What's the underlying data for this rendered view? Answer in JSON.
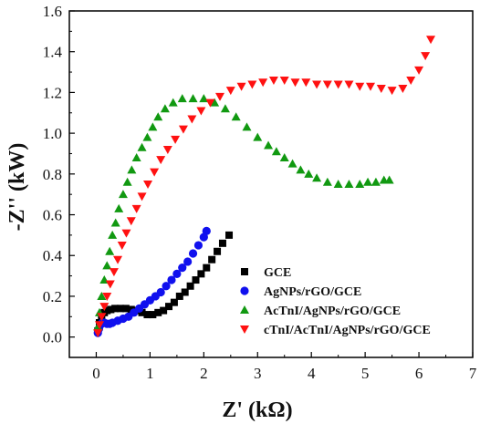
{
  "chart_data": {
    "type": "scatter",
    "title": "",
    "xlabel": "Z' (kΩ)",
    "ylabel": "-Z'' (kW)",
    "xlim": [
      -0.5,
      7
    ],
    "ylim": [
      -0.1,
      1.6
    ],
    "xticks": [
      0,
      1,
      2,
      3,
      4,
      5,
      6,
      7
    ],
    "yticks": [
      0.0,
      0.2,
      0.4,
      0.6,
      0.8,
      1.0,
      1.2,
      1.4,
      1.6
    ],
    "xtick_labels": [
      "0",
      "1",
      "2",
      "3",
      "4",
      "5",
      "6",
      "7"
    ],
    "ytick_labels": [
      "0.0",
      "0.2",
      "0.4",
      "0.6",
      "0.8",
      "1.0",
      "1.2",
      "1.4",
      "1.6"
    ],
    "grid": false,
    "legend_position": "bottom-right",
    "series": [
      {
        "name": "GCE",
        "marker": "square",
        "color": "#000000",
        "x": [
          0.03,
          0.06,
          0.1,
          0.15,
          0.2,
          0.27,
          0.35,
          0.45,
          0.55,
          0.65,
          0.75,
          0.85,
          0.95,
          1.05,
          1.15,
          1.25,
          1.35,
          1.45,
          1.55,
          1.65,
          1.75,
          1.85,
          1.95,
          2.05,
          2.15,
          2.25,
          2.35,
          2.47
        ],
        "y": [
          0.03,
          0.07,
          0.1,
          0.12,
          0.13,
          0.135,
          0.14,
          0.14,
          0.14,
          0.135,
          0.13,
          0.12,
          0.11,
          0.11,
          0.12,
          0.13,
          0.15,
          0.17,
          0.2,
          0.22,
          0.25,
          0.28,
          0.31,
          0.34,
          0.38,
          0.42,
          0.46,
          0.5
        ]
      },
      {
        "name": "AgNPs/rGO/GCE",
        "marker": "circle",
        "color": "#1010ee",
        "x": [
          0.03,
          0.05,
          0.08,
          0.11,
          0.15,
          0.2,
          0.25,
          0.3,
          0.4,
          0.5,
          0.6,
          0.7,
          0.8,
          0.9,
          1.0,
          1.1,
          1.2,
          1.3,
          1.4,
          1.5,
          1.6,
          1.7,
          1.8,
          1.9,
          2.0,
          2.05
        ],
        "y": [
          0.02,
          0.04,
          0.06,
          0.07,
          0.07,
          0.065,
          0.065,
          0.07,
          0.08,
          0.09,
          0.1,
          0.12,
          0.14,
          0.16,
          0.18,
          0.2,
          0.22,
          0.25,
          0.28,
          0.31,
          0.34,
          0.37,
          0.41,
          0.45,
          0.49,
          0.52
        ]
      },
      {
        "name": "AcTnI/AgNPs/rGO/GCE",
        "marker": "triangle-up",
        "color": "#119911",
        "x": [
          0.03,
          0.06,
          0.1,
          0.15,
          0.2,
          0.25,
          0.3,
          0.36,
          0.42,
          0.5,
          0.58,
          0.66,
          0.75,
          0.85,
          0.95,
          1.05,
          1.15,
          1.28,
          1.43,
          1.6,
          1.8,
          2.0,
          2.2,
          2.4,
          2.6,
          2.8,
          3.0,
          3.2,
          3.35,
          3.5,
          3.65,
          3.8,
          3.95,
          4.1,
          4.3,
          4.5,
          4.7,
          4.9,
          5.05,
          5.2,
          5.35,
          5.45
        ],
        "y": [
          0.05,
          0.12,
          0.2,
          0.28,
          0.35,
          0.42,
          0.5,
          0.56,
          0.63,
          0.7,
          0.76,
          0.82,
          0.88,
          0.93,
          0.98,
          1.03,
          1.08,
          1.12,
          1.15,
          1.17,
          1.17,
          1.17,
          1.15,
          1.12,
          1.08,
          1.03,
          0.98,
          0.94,
          0.91,
          0.88,
          0.85,
          0.82,
          0.8,
          0.78,
          0.76,
          0.75,
          0.75,
          0.75,
          0.76,
          0.76,
          0.77,
          0.77
        ]
      },
      {
        "name": "cTnI/AcTnI/AgNPs/rGO/GCE",
        "marker": "triangle-down",
        "color": "#ff1111",
        "x": [
          0.03,
          0.06,
          0.1,
          0.15,
          0.2,
          0.26,
          0.33,
          0.4,
          0.48,
          0.56,
          0.65,
          0.75,
          0.85,
          0.96,
          1.08,
          1.2,
          1.33,
          1.47,
          1.62,
          1.78,
          1.95,
          2.12,
          2.3,
          2.5,
          2.7,
          2.9,
          3.1,
          3.3,
          3.5,
          3.7,
          3.9,
          4.1,
          4.3,
          4.5,
          4.7,
          4.9,
          5.1,
          5.3,
          5.5,
          5.7,
          5.85,
          6.0,
          6.12,
          6.22
        ],
        "y": [
          0.02,
          0.06,
          0.1,
          0.15,
          0.2,
          0.26,
          0.32,
          0.38,
          0.45,
          0.51,
          0.57,
          0.63,
          0.69,
          0.75,
          0.81,
          0.87,
          0.92,
          0.97,
          1.02,
          1.07,
          1.11,
          1.15,
          1.18,
          1.21,
          1.23,
          1.24,
          1.25,
          1.26,
          1.26,
          1.25,
          1.25,
          1.24,
          1.24,
          1.24,
          1.24,
          1.23,
          1.23,
          1.22,
          1.21,
          1.22,
          1.26,
          1.31,
          1.38,
          1.46
        ]
      }
    ]
  }
}
